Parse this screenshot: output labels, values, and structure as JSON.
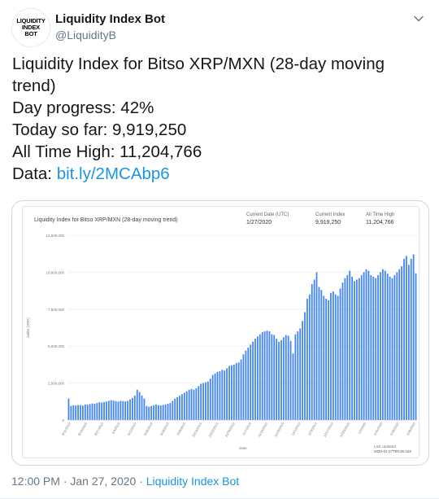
{
  "tweet": {
    "author_name": "Liquidity Index Bot",
    "author_handle": "@LiquidityB",
    "avatar_text": [
      "LIQUIDITY",
      "INDEX",
      "BOT"
    ],
    "lines": [
      "Liquidity Index for Bitso XRP/MXN (28-day moving",
      "trend)",
      "Day progress: 42%",
      "Today so far: 9,919,250",
      "All Time High: 11,204,766"
    ],
    "data_label": "Data: ",
    "data_link": "bit.ly/2MCAbp6",
    "timestamp": "12:00 PM · Jan 27, 2020 · ",
    "source": "Liquidity Index Bot",
    "icons": {
      "menu": "chevron-down-icon"
    },
    "colors": {
      "link": "#1b95e0",
      "bar": "#4285f4"
    }
  },
  "chart_data": {
    "type": "bar",
    "title": "Liquidity Index for Bitso XRP/MXN (28-day moving trend)",
    "stats": [
      {
        "label": "Current Date (UTC)",
        "value": "1/27/2020"
      },
      {
        "label": "Current Index",
        "value": "9,919,250"
      },
      {
        "label": "All Time High",
        "value": "11,204,766"
      }
    ],
    "xlabel": "Date",
    "ylabel": "Index (XRP)",
    "ylim": [
      0,
      12500000
    ],
    "yticks": [
      0,
      2500000,
      5000000,
      7500000,
      10000000,
      12500000
    ],
    "ytick_labels": [
      "0",
      "2,500,000",
      "5,000,000",
      "7,500,000",
      "10,000,000",
      "12,500,000"
    ],
    "last_updated_label": "Last Updated",
    "last_updated_value": "2020-01-27T09:35:42Z",
    "x_start": "8/11/2019",
    "x_end": "1/27/2020",
    "x_tick_labels": [
      "8/11/2019",
      "8/19/2019",
      "8/27/2019",
      "9/4/2019",
      "9/12/2019",
      "9/20/2019",
      "9/28/2019",
      "10/6/2019",
      "10/14/2019",
      "10/22/2019",
      "10/30/2019",
      "11/7/2019",
      "11/15/2019",
      "11/23/2019",
      "12/1/2019",
      "12/9/2019",
      "12/17/2019",
      "12/25/2019",
      "1/2/2020",
      "1/10/2020",
      "1/18/2020",
      "1/26/2020"
    ],
    "values": [
      1450000,
      950000,
      1000000,
      980000,
      1020000,
      1000000,
      980000,
      1050000,
      1030000,
      1080000,
      1120000,
      1100000,
      1150000,
      1200000,
      1180000,
      1220000,
      1250000,
      1300000,
      1350000,
      1320000,
      1280000,
      1250000,
      1300000,
      1280000,
      1260000,
      1300000,
      1400000,
      1500000,
      1650000,
      2050000,
      1900000,
      1650000,
      1450000,
      950000,
      900000,
      950000,
      1000000,
      1050000,
      1000000,
      980000,
      1020000,
      1050000,
      1100000,
      1150000,
      1300000,
      1450000,
      1550000,
      1650000,
      1750000,
      1850000,
      1950000,
      2050000,
      2100000,
      2050000,
      2150000,
      2300000,
      2450000,
      2500000,
      2550000,
      2600000,
      2800000,
      3050000,
      3150000,
      3250000,
      3300000,
      3400000,
      3350000,
      3500000,
      3650000,
      3700000,
      3750000,
      3850000,
      3900000,
      4100000,
      4450000,
      4700000,
      4900000,
      5100000,
      5300000,
      5500000,
      5650000,
      5800000,
      5950000,
      6000000,
      6050000,
      6000000,
      5800000,
      5750000,
      5500000,
      5300000,
      5400000,
      5600000,
      5750000,
      5700000,
      5350000,
      4500000,
      5800000,
      6000000,
      6200000,
      6700000,
      7300000,
      8200000,
      8500000,
      9200000,
      9500000,
      10000000,
      9000000,
      8800000,
      8400000,
      8200000,
      8100000,
      8600000,
      8700000,
      8500000,
      8400000,
      8900000,
      9300000,
      9600000,
      9800000,
      10100000,
      9700000,
      9400000,
      9500000,
      9600000,
      9800000,
      10000000,
      10200000,
      10100000,
      9800000,
      9700000,
      9600000,
      9800000,
      10000000,
      10200000,
      10100000,
      9900000,
      9700000,
      9600000,
      9800000,
      10000000,
      10200000,
      10400000,
      10900000,
      11100000,
      10500000,
      10900000,
      11204766,
      9919250
    ]
  }
}
